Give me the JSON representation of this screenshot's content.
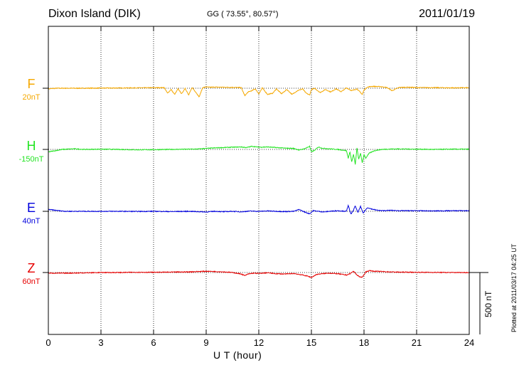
{
  "header": {
    "station": "Dixon Island (DIK)",
    "coords": "GG ( 73.55°,  80.57°)",
    "date": "2011/01/19"
  },
  "side": {
    "plotted": "Plotted at 2011/03/17 04:25 UT",
    "scale_label": "500 nT"
  },
  "colors": {
    "F": "#f5a800",
    "H": "#22e422",
    "E": "#0000dd",
    "Z": "#e60000"
  },
  "chart_data": {
    "type": "line",
    "xlabel": "U T (hour)",
    "xlim": [
      0,
      24
    ],
    "x_ticks": [
      "0",
      "3",
      "6",
      "9",
      "12",
      "15",
      "18",
      "21",
      "24"
    ],
    "scale_bar_nT": 500,
    "series": [
      {
        "name": "F",
        "baseline_label": "20nT",
        "x": [
          0,
          0.5,
          1,
          2,
          3,
          4,
          5,
          6,
          6.6,
          6.8,
          7.0,
          7.2,
          7.4,
          7.6,
          7.8,
          8.0,
          8.2,
          8.4,
          8.6,
          8.8,
          9.0,
          9.2,
          9.5,
          10.0,
          10.5,
          11.0,
          11.2,
          11.4,
          11.6,
          11.8,
          12.0,
          12.2,
          12.5,
          12.8,
          13.0,
          13.3,
          13.6,
          13.9,
          14.2,
          14.5,
          14.7,
          14.9,
          15.0,
          15.2,
          15.5,
          15.8,
          16.1,
          16.4,
          16.7,
          17.0,
          17.3,
          17.6,
          17.9,
          18.0,
          18.2,
          18.5,
          19.0,
          19.3,
          19.6,
          20.0,
          20.5,
          21,
          22,
          23,
          24
        ],
        "values": [
          -5,
          0,
          0,
          0,
          1,
          2,
          3,
          4,
          5,
          -40,
          -10,
          -50,
          -5,
          -45,
          0,
          -55,
          6,
          -30,
          -70,
          5,
          10,
          8,
          9,
          8,
          7,
          5,
          -60,
          -30,
          -20,
          -5,
          -45,
          2,
          -50,
          -40,
          -5,
          -45,
          -10,
          -50,
          -20,
          -5,
          -40,
          -55,
          -10,
          -2,
          -35,
          -10,
          -30,
          -5,
          -28,
          3,
          -20,
          -5,
          -50,
          -15,
          10,
          15,
          12,
          6,
          -20,
          6,
          8,
          5,
          5,
          3,
          4
        ]
      },
      {
        "name": "H",
        "baseline_label": "-150nT",
        "x": [
          0,
          0.4,
          0.8,
          1.5,
          2,
          3,
          4,
          5,
          6,
          7,
          8,
          8.5,
          9,
          9.5,
          10,
          10.5,
          11,
          11.3,
          11.6,
          12,
          12.5,
          13,
          13.5,
          14,
          14.3,
          14.6,
          14.9,
          15.0,
          15.2,
          15.4,
          15.6,
          16,
          16.5,
          17,
          17.1,
          17.2,
          17.3,
          17.4,
          17.5,
          17.6,
          17.7,
          17.8,
          17.9,
          18.0,
          18.1,
          18.3,
          18.6,
          19,
          19.5,
          20,
          21,
          22,
          23,
          24
        ],
        "values": [
          -20,
          -10,
          0,
          5,
          0,
          2,
          0,
          -3,
          -2,
          0,
          2,
          3,
          8,
          12,
          15,
          18,
          20,
          15,
          25,
          18,
          20,
          15,
          10,
          8,
          -5,
          5,
          25,
          -20,
          -5,
          20,
          10,
          5,
          0,
          -10,
          -70,
          -20,
          -100,
          -40,
          -120,
          10,
          -80,
          -30,
          -110,
          -40,
          -70,
          -30,
          -10,
          0,
          3,
          4,
          2,
          0,
          2,
          2
        ]
      },
      {
        "name": "E",
        "baseline_label": "40nT",
        "x": [
          0,
          0.3,
          0.6,
          1,
          1.5,
          2,
          3,
          4,
          5,
          6,
          7,
          8,
          9,
          9.5,
          10,
          10.5,
          11,
          11.5,
          12,
          12.5,
          13,
          13.5,
          14,
          14.3,
          14.6,
          14.9,
          15.1,
          15.4,
          15.7,
          16,
          16.5,
          17,
          17.1,
          17.25,
          17.4,
          17.5,
          17.65,
          17.8,
          17.95,
          18.05,
          18.2,
          18.4,
          18.7,
          19,
          19.5,
          20,
          21,
          22,
          23,
          24
        ],
        "values": [
          15,
          10,
          5,
          0,
          0,
          0,
          0,
          0,
          -1,
          0,
          -2,
          0,
          -5,
          0,
          -3,
          0,
          -4,
          2,
          0,
          3,
          0,
          -2,
          0,
          15,
          -5,
          -20,
          5,
          0,
          -5,
          0,
          5,
          0,
          50,
          -25,
          10,
          45,
          -10,
          40,
          -15,
          5,
          30,
          20,
          10,
          5,
          8,
          5,
          5,
          3,
          5,
          5
        ]
      },
      {
        "name": "Z",
        "baseline_label": "60nT",
        "x": [
          0,
          1,
          2,
          3,
          4,
          5,
          6,
          7,
          8,
          9,
          9.5,
          10,
          10.5,
          11,
          11.2,
          11.4,
          11.7,
          12,
          12.5,
          13,
          13.5,
          14,
          14.5,
          14.8,
          15.0,
          15.3,
          15.6,
          16,
          16.5,
          17,
          17.2,
          17.4,
          17.6,
          17.8,
          17.9,
          18.0,
          18.1,
          18.3,
          18.6,
          19,
          19.5,
          20,
          21,
          22,
          23,
          24
        ],
        "values": [
          -5,
          -5,
          -3,
          0,
          0,
          2,
          2,
          3,
          5,
          10,
          8,
          5,
          0,
          -12,
          -25,
          -12,
          -5,
          -8,
          -2,
          -10,
          -12,
          -8,
          -20,
          -30,
          -40,
          -15,
          -10,
          -5,
          -10,
          -20,
          -10,
          10,
          -20,
          -40,
          -35,
          -20,
          5,
          15,
          10,
          8,
          5,
          3,
          2,
          1,
          0,
          0
        ]
      }
    ]
  }
}
